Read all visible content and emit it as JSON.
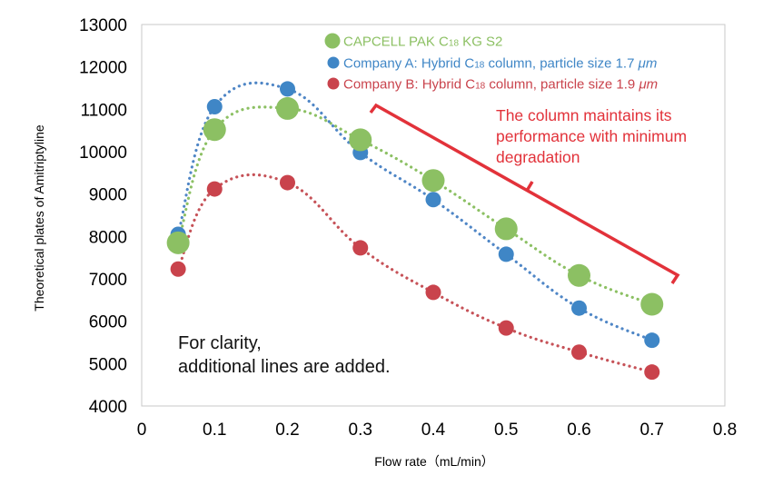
{
  "chart_data": {
    "type": "scatter",
    "xlabel": "Flow rate（mL/min）",
    "ylabel": "Theoretical plates of Amitriptyline",
    "xlim": [
      0,
      0.8
    ],
    "ylim": [
      4000,
      13000
    ],
    "x_ticks": [
      "0",
      "0.1",
      "0.2",
      "0.3",
      "0.4",
      "0.5",
      "0.6",
      "0.7",
      "0.8"
    ],
    "y_ticks": [
      "4000",
      "5000",
      "6000",
      "7000",
      "8000",
      "9000",
      "10000",
      "11000",
      "12000",
      "13000"
    ],
    "grid": false,
    "legend_position": "top-right",
    "series": [
      {
        "name": "CAPCELL PAK C18 KG S2",
        "legend_parts": [
          "CAPCELL PAK C",
          "18",
          " KG S2"
        ],
        "color": "#8cc063",
        "line_color": "#8cc063",
        "marker": "large",
        "x": [
          0.05,
          0.1,
          0.2,
          0.3,
          0.4,
          0.5,
          0.6,
          0.7
        ],
        "y": [
          7850,
          10520,
          11020,
          10280,
          9320,
          8180,
          7080,
          6400
        ]
      },
      {
        "name": "Company A: Hybrid C18 column, particle size 1.7 μm",
        "legend_parts": [
          "Company A: Hybrid C",
          "18",
          " column, particle size 1.7 ",
          "μm"
        ],
        "color": "#3f86c6",
        "line_color": "#4f86c6",
        "marker": "small",
        "x": [
          0.05,
          0.1,
          0.2,
          0.3,
          0.4,
          0.5,
          0.6,
          0.7
        ],
        "y": [
          8050,
          11060,
          11480,
          9980,
          8870,
          7580,
          6310,
          5550
        ]
      },
      {
        "name": "Company B: Hybrid C18 column, particle size 1.9 μm",
        "legend_parts": [
          "Company B: Hybrid C",
          "18",
          " column, particle size 1.9 ",
          "μm"
        ],
        "color": "#c9434c",
        "line_color": "#c65258",
        "marker": "small",
        "x": [
          0.05,
          0.1,
          0.2,
          0.3,
          0.4,
          0.5,
          0.6,
          0.7
        ],
        "y": [
          7230,
          9120,
          9270,
          7730,
          6680,
          5840,
          5270,
          4800
        ]
      }
    ],
    "annotations": [
      {
        "id": "callout",
        "lines": [
          "The column maintains its",
          "performance with minimum",
          "degradation"
        ],
        "color": "#e2323a"
      },
      {
        "id": "note",
        "lines": [
          "For clarity,",
          "additional lines are added."
        ],
        "color": "#111111"
      }
    ]
  }
}
